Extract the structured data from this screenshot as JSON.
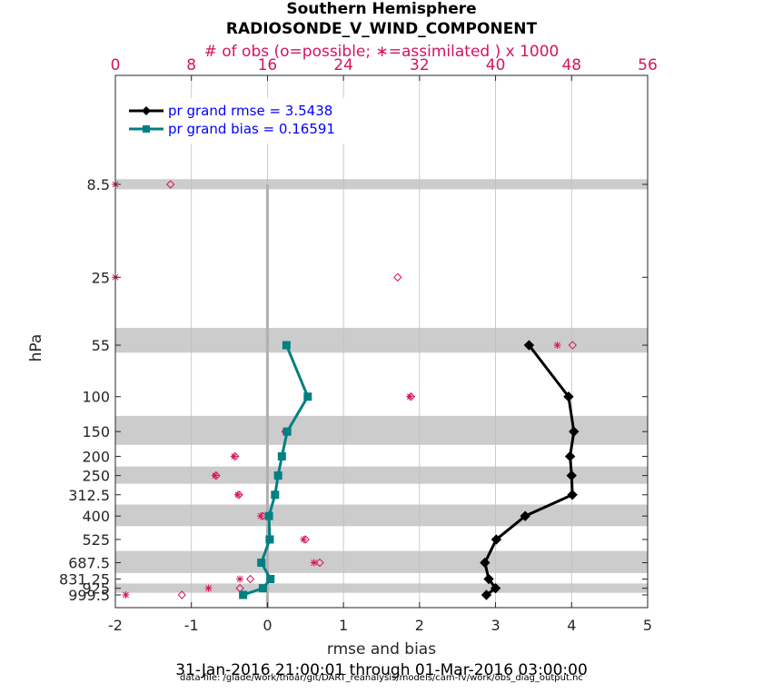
{
  "chart_data": {
    "type": "line",
    "title": "Southern Hemisphere",
    "subtitle": "RADIOSONDE_V_WIND_COMPONENT",
    "top_axis_label": "# of obs (o=possible; ∗=assimilated ) x 1000",
    "xlabel": "rmse and bias",
    "ylabel": "hPa",
    "date_range": "31-Jan-2016 21:00:01 through 01-Mar-2016 03:00:00",
    "data_file": "data file: /glade/work/thoar/git/DART_reanalysis/models/cam-fv/work/obs_diag_output.nc",
    "xlim": [
      -2,
      5
    ],
    "x_ticks": [
      "-2",
      "-1",
      "0",
      "1",
      "2",
      "3",
      "4",
      "5"
    ],
    "top_xlim": [
      0,
      56
    ],
    "top_ticks": [
      "0",
      "8",
      "16",
      "24",
      "32",
      "40",
      "48",
      "56"
    ],
    "y_scale": "log",
    "y_reversed": true,
    "y_ticks": [
      "8.5",
      "25",
      "55",
      "100",
      "150",
      "200",
      "250",
      "312.5",
      "400",
      "525",
      "687.5",
      "831.25",
      "925",
      "999.5"
    ],
    "levels": [
      8.5,
      25,
      55,
      100,
      150,
      200,
      250,
      312.5,
      400,
      525,
      687.5,
      831.25,
      925,
      999.5
    ],
    "legend_position": "top-left",
    "grid": true,
    "series": [
      {
        "name": "pr grand rmse = 3.5438",
        "color": "#000000",
        "marker": "diamond",
        "levels": [
          55,
          100,
          150,
          200,
          250,
          312.5,
          400,
          525,
          687.5,
          831.25,
          925,
          999.5
        ],
        "values": [
          3.44,
          3.96,
          4.03,
          3.98,
          4.0,
          4.01,
          3.39,
          3.01,
          2.86,
          2.91,
          3.0,
          2.88
        ]
      },
      {
        "name": "pr grand bias = 0.16591",
        "color": "#008080",
        "marker": "square",
        "levels": [
          55,
          100,
          150,
          200,
          250,
          312.5,
          400,
          525,
          687.5,
          831.25,
          925,
          999.5
        ],
        "values": [
          0.25,
          0.53,
          0.26,
          0.19,
          0.14,
          0.1,
          0.02,
          0.03,
          -0.08,
          0.04,
          -0.06,
          -0.32
        ]
      }
    ],
    "obs_counts": {
      "levels": [
        8.5,
        25,
        55,
        100,
        150,
        200,
        250,
        312.5,
        400,
        525,
        687.5,
        831.25,
        925,
        999.5
      ],
      "possible": [
        5.8,
        29.7,
        48.1,
        31.1,
        17.9,
        12.6,
        10.6,
        13.0,
        15.5,
        20.0,
        21.5,
        14.2,
        13.1,
        7.0
      ],
      "assimilated": [
        0,
        0,
        46.5,
        31.0,
        17.9,
        12.5,
        10.5,
        12.9,
        15.3,
        19.8,
        20.9,
        13.1,
        9.8,
        1.1
      ]
    },
    "shaded_bands": [
      [
        8,
        9
      ],
      [
        45,
        60
      ],
      [
        125,
        175
      ],
      [
        225,
        275
      ],
      [
        350,
        450
      ],
      [
        600,
        775
      ],
      [
        875,
        975
      ]
    ],
    "colors": {
      "obs_marker": "#d6135e",
      "rmse": "#000000",
      "bias": "#008080",
      "band": "#cccccc",
      "legend_text": "#0000ff",
      "top_axis": "#d6135e"
    }
  }
}
